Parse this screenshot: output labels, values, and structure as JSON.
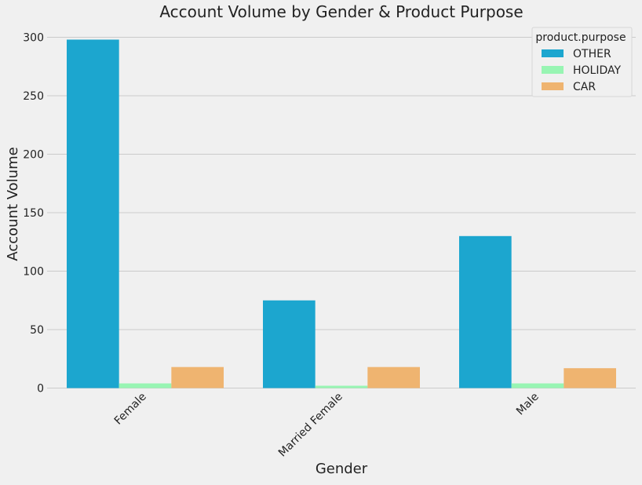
{
  "chart_data": {
    "type": "bar",
    "title": "Account Volume by Gender & Product Purpose",
    "xlabel": "Gender",
    "ylabel": "Account Volume",
    "categories": [
      "Female",
      "Married Female",
      "Male"
    ],
    "series": [
      {
        "name": "OTHER",
        "color": "#1ca6cf",
        "values": [
          298,
          75,
          130
        ]
      },
      {
        "name": "HOLIDAY",
        "color": "#98f5b3",
        "values": [
          4,
          2,
          4
        ]
      },
      {
        "name": "CAR",
        "color": "#efb470",
        "values": [
          18,
          18,
          17
        ]
      }
    ],
    "ylim": [
      0,
      300
    ],
    "yticks": [
      0,
      50,
      100,
      150,
      200,
      250,
      300
    ],
    "legend": {
      "title": "product.purpose",
      "position": "top-right"
    },
    "grid": "horizontal",
    "background": "#f0f0f0"
  }
}
